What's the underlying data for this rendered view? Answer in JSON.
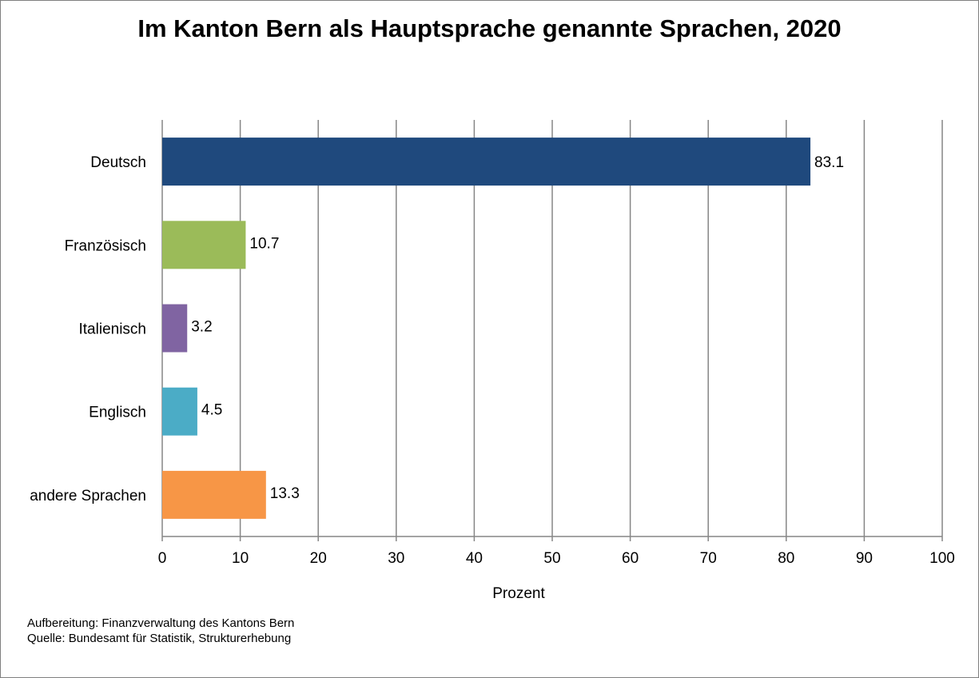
{
  "chart_data": {
    "type": "bar",
    "orientation": "horizontal",
    "title": "Im Kanton Bern als Hauptsprache  genannte Sprachen, 2020",
    "xlabel": "Prozent",
    "ylabel": "",
    "xlim": [
      0,
      100
    ],
    "x_ticks": [
      "0",
      "10",
      "20",
      "30",
      "40",
      "50",
      "60",
      "70",
      "80",
      "90",
      "100"
    ],
    "grid": "vertical",
    "legend": "none",
    "categories": [
      "Deutsch",
      "Französisch",
      "Italienisch",
      "Englisch",
      "andere Sprachen"
    ],
    "values": [
      83.1,
      10.7,
      3.2,
      4.5,
      13.3
    ],
    "value_labels": [
      "83.1",
      "10.7",
      "3.2",
      "4.5",
      "13.3"
    ],
    "colors": [
      "#1f497d",
      "#9bbb59",
      "#8064a2",
      "#4bacc6",
      "#f79646"
    ]
  },
  "footer": {
    "line1": "Aufbereitung: Finanzverwaltung  des Kantons Bern",
    "line2": "Quelle:  Bundesamt  für Statistik,  Strukturerhebung"
  }
}
